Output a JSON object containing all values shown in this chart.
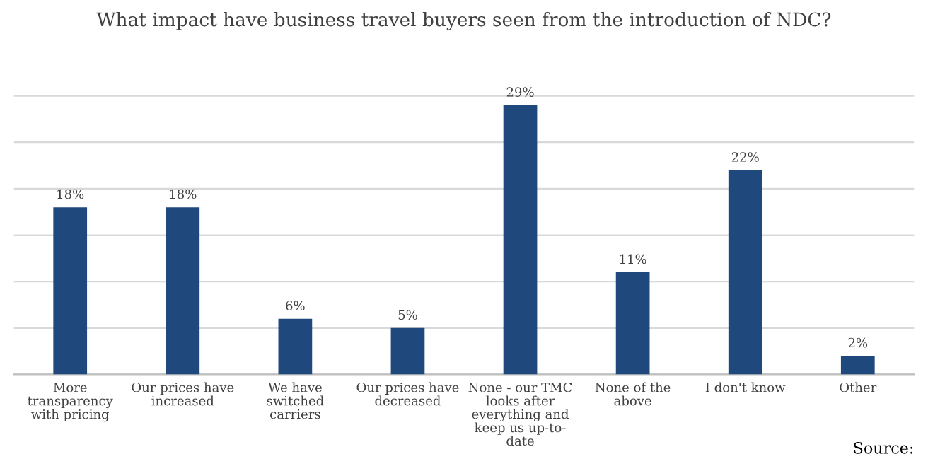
{
  "chart_data": {
    "type": "bar",
    "title": "What impact have business travel buyers seen from the introduction of NDC?",
    "categories": [
      "More\ntransparency\nwith pricing",
      "Our prices have\nincreased",
      "We have\nswitched\ncarriers",
      "Our prices have\ndecreased",
      "None - our TMC\nlooks after\neverything and\nkeep us up-to-\ndate",
      "None of the\nabove",
      "I don't know",
      "Other"
    ],
    "values": [
      18,
      18,
      6,
      5,
      29,
      11,
      22,
      2
    ],
    "value_labels": [
      "18%",
      "18%",
      "6%",
      "5%",
      "29%",
      "11%",
      "22%",
      "2%"
    ],
    "color": "#1f497d",
    "ylim": [
      0,
      35
    ],
    "yticks": [
      {
        "value": 0,
        "label": null
      },
      {
        "value": 5,
        "label": null
      },
      {
        "value": 10,
        "label": null
      },
      {
        "value": 15,
        "label": null
      },
      {
        "value": 20,
        "label": null
      },
      {
        "value": 25,
        "label": null
      },
      {
        "value": 30,
        "label": null
      },
      {
        "value": 35,
        "label": null
      }
    ],
    "grid": "y",
    "annotations": [
      "Source:"
    ]
  }
}
